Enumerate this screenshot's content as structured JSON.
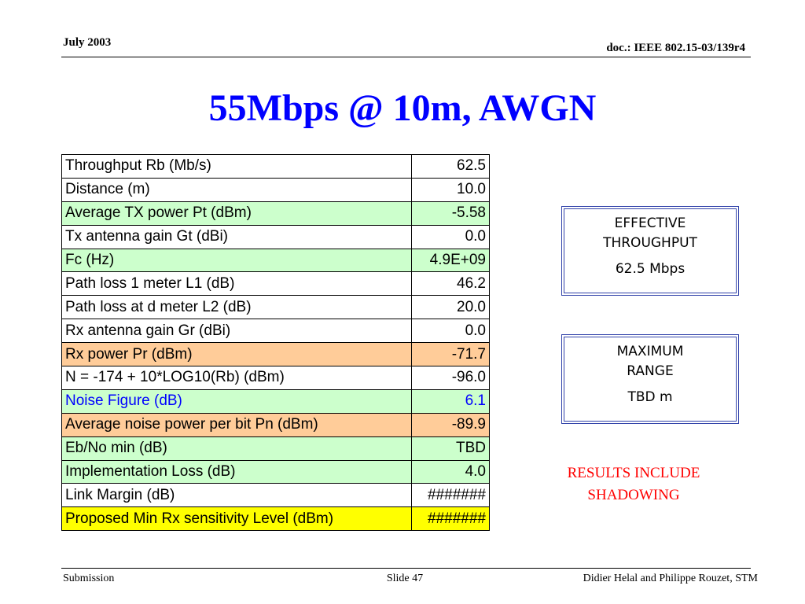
{
  "header": {
    "date": "July 2003",
    "doc": "doc.: IEEE 802.15-03/139r4"
  },
  "title": "55Mbps @ 10m, AWGN",
  "table": {
    "rows": [
      [
        "Throughput Rb (Mb/s)",
        "62.5"
      ],
      [
        "Distance (m)",
        "10.0"
      ],
      [
        "Average TX power Pt (dBm)",
        "-5.58"
      ],
      [
        "Tx antenna gain Gt (dBi)",
        "0.0"
      ],
      [
        "Fc (Hz)",
        "4.9E+09"
      ],
      [
        "Path loss 1 meter L1 (dB)",
        "46.2"
      ],
      [
        "Path loss at d meter L2 (dB)",
        "20.0"
      ],
      [
        "Rx antenna gain Gr (dBi)",
        "0.0"
      ],
      [
        "Rx power Pr (dBm)",
        "-71.7"
      ],
      [
        "N = -174 + 10*LOG10(Rb) (dBm)",
        "-96.0"
      ],
      [
        "Noise Figure (dB)",
        "6.1"
      ],
      [
        "Average noise power per bit Pn (dBm)",
        "-89.9"
      ],
      [
        "Eb/No min (dB)",
        "TBD"
      ],
      [
        "Implementation Loss (dB)",
        "4.0"
      ],
      [
        "Link Margin (dB)",
        "#######"
      ],
      [
        "Proposed Min Rx sensitivity Level (dBm)",
        "#######"
      ]
    ]
  },
  "boxes": [
    {
      "lines": [
        "EFFECTIVE",
        "THROUGHPUT"
      ],
      "value": "62.5 Mbps"
    },
    {
      "lines": [
        "MAXIMUM",
        "RANGE"
      ],
      "value": "TBD m"
    }
  ],
  "note": [
    "RESULTS INCLUDE",
    "SHADOWING"
  ],
  "footer": {
    "left": "Submission",
    "center": "Slide 47",
    "right": "Didier Helal and Philippe Rouzet, STM"
  }
}
